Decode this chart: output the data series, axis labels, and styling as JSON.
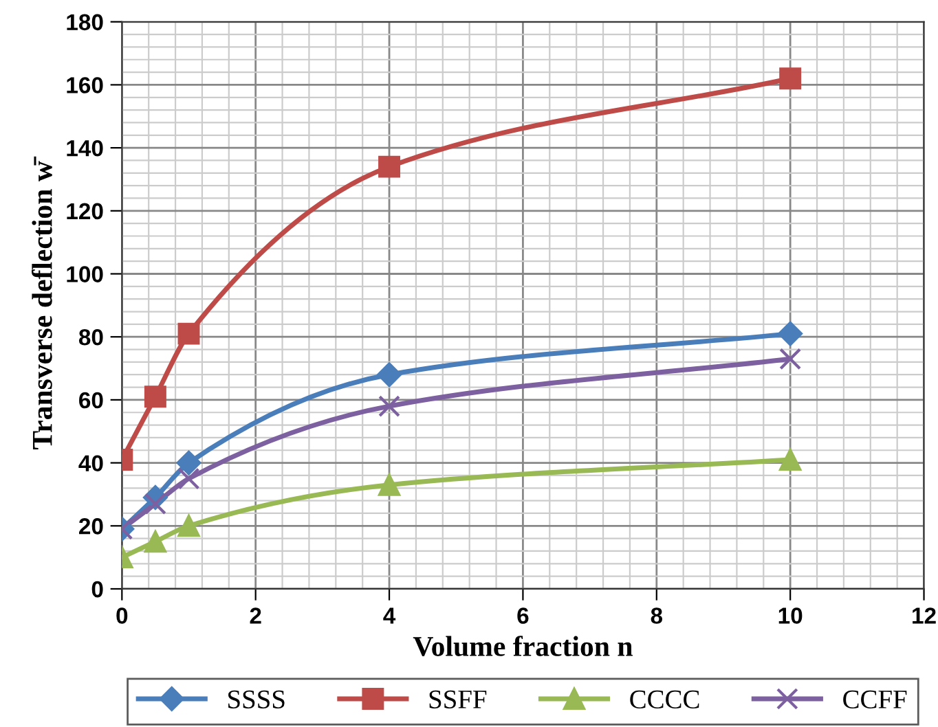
{
  "chart_data": {
    "type": "line",
    "xlabel": "Volume fraction n",
    "ylabel": "Transverse deflection w̄",
    "x": [
      0,
      0.5,
      1,
      4,
      10
    ],
    "series": [
      {
        "name": "SSSS",
        "color": "#4a7ebb",
        "marker": "diamond",
        "values": [
          19,
          29,
          40,
          68,
          81
        ]
      },
      {
        "name": "SSFF",
        "color": "#be4b48",
        "marker": "square",
        "values": [
          41,
          61,
          81,
          134,
          162
        ]
      },
      {
        "name": "CCCC",
        "color": "#98b954",
        "marker": "triangle",
        "values": [
          10,
          15,
          20,
          33,
          41
        ]
      },
      {
        "name": "CCFF",
        "color": "#7d60a0",
        "marker": "cross",
        "values": [
          19,
          27,
          35,
          58,
          73
        ]
      }
    ],
    "xlim": [
      0,
      12
    ],
    "xticks": [
      0,
      2,
      4,
      6,
      8,
      10,
      12
    ],
    "ylim": [
      0,
      180
    ],
    "yticks": [
      0,
      20,
      40,
      60,
      80,
      100,
      120,
      140,
      160,
      180
    ],
    "grid": true,
    "legend": "bottom",
    "line_style": "solid"
  }
}
